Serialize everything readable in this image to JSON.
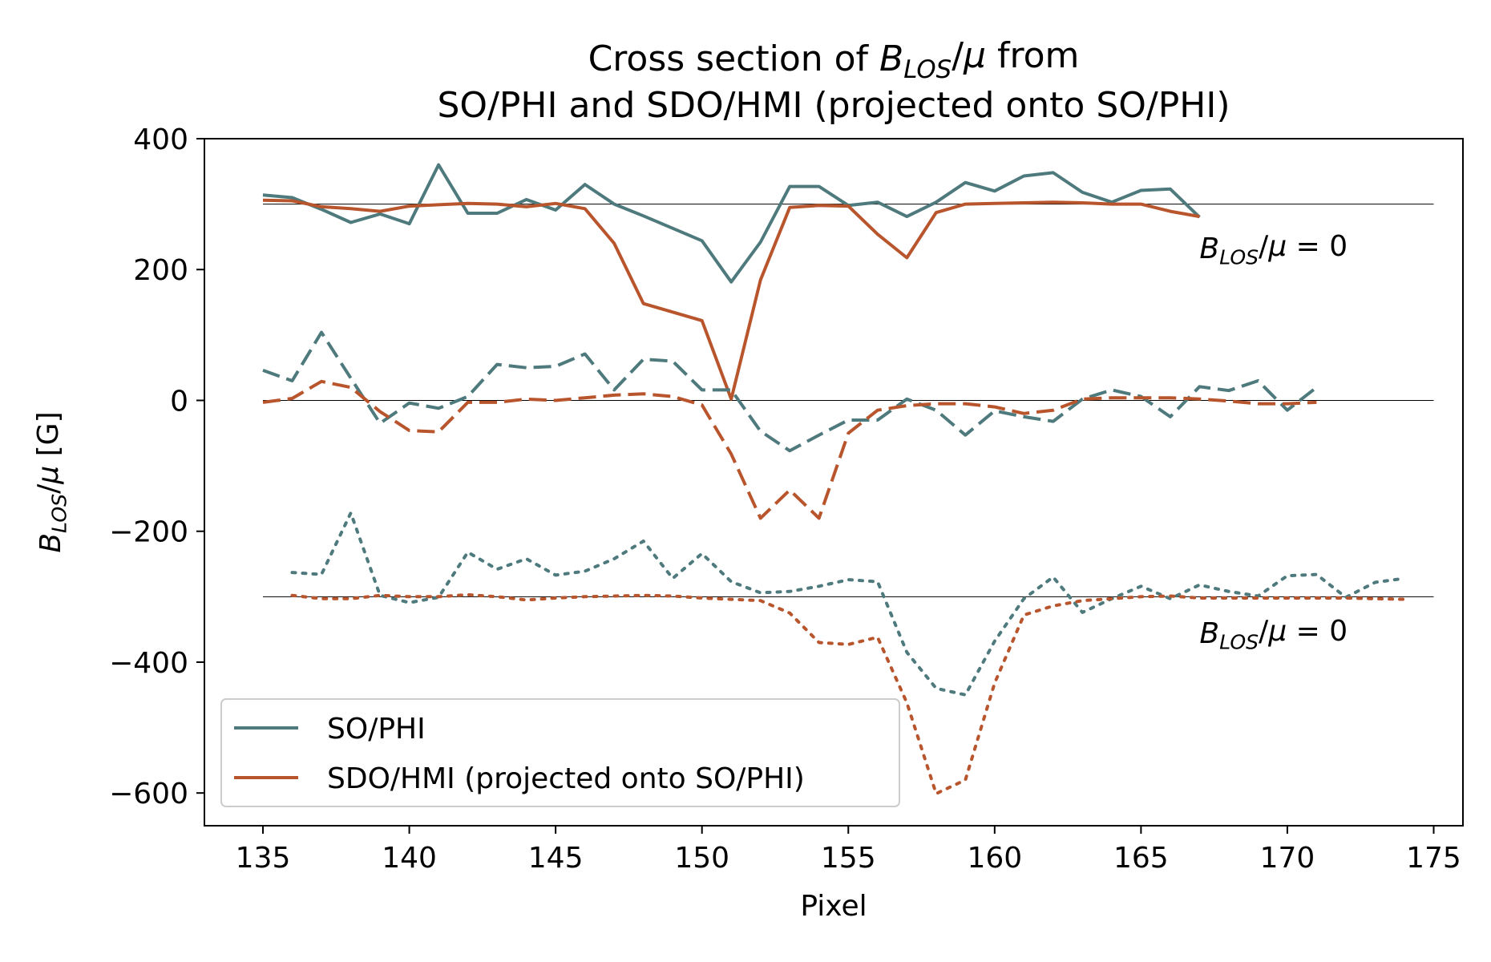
{
  "chart_data": {
    "type": "line",
    "title_line1": "Cross section of B_LOS/μ from",
    "title_line2": "SO/PHI and SDO/HMI (projected onto SO/PHI)",
    "xlabel": "Pixel",
    "ylabel": "B_LOS/μ [G]",
    "xlim": [
      133,
      176
    ],
    "ylim": [
      -650,
      400
    ],
    "x_ticks": [
      135,
      140,
      145,
      150,
      155,
      160,
      165,
      170,
      175
    ],
    "x_tick_labels": [
      "135",
      "140",
      "145",
      "150",
      "155",
      "160",
      "165",
      "170",
      "175"
    ],
    "y_ticks": [
      400,
      200,
      0,
      -200,
      -400,
      -600
    ],
    "y_tick_labels": [
      "400",
      "200",
      "0",
      "−200",
      "−400",
      "−600"
    ],
    "colors": {
      "phi": "#4e7a7d",
      "hmi": "#b8552c"
    },
    "reference_lines": [
      {
        "y": 300,
        "x_start": 135,
        "x_end": 175
      },
      {
        "y": 0,
        "x_start": 135,
        "x_end": 175
      },
      {
        "y": -300,
        "x_start": 135,
        "x_end": 175
      }
    ],
    "annotations": [
      {
        "text": "B_LOS/μ = 0",
        "x": 167,
        "y": 232
      },
      {
        "text": "B_LOS/μ = 0",
        "x": 167,
        "y": -356
      }
    ],
    "legend": [
      {
        "label": "SO/PHI",
        "series": "phi"
      },
      {
        "label": "SDO/HMI (projected onto SO/PHI)",
        "series": "hmi"
      }
    ],
    "series": [
      {
        "name": "SO/PHI",
        "instrument": "phi",
        "style": "solid",
        "x": [
          135,
          136,
          137,
          138,
          139,
          140,
          141,
          142,
          143,
          144,
          145,
          146,
          147,
          148,
          149,
          150,
          151,
          152,
          153,
          154,
          155,
          156,
          157,
          158,
          159,
          160,
          161,
          162,
          163,
          164,
          165,
          166,
          167
        ],
        "values": [
          314,
          310,
          292,
          272,
          285,
          270,
          360,
          286,
          286,
          307,
          291,
          330,
          300,
          282,
          263,
          244,
          181,
          242,
          327,
          327,
          298,
          303,
          281,
          303,
          333,
          320,
          343,
          348,
          318,
          303,
          321,
          323,
          280
        ]
      },
      {
        "name": "SDO/HMI (projected onto SO/PHI)",
        "instrument": "hmi",
        "style": "solid",
        "x": [
          135,
          136,
          137,
          138,
          139,
          140,
          141,
          142,
          143,
          144,
          145,
          146,
          147,
          148,
          149,
          150,
          151,
          152,
          153,
          154,
          155,
          156,
          157,
          158,
          159,
          160,
          161,
          162,
          163,
          164,
          165,
          166,
          167
        ],
        "values": [
          306,
          305,
          296,
          293,
          289,
          297,
          299,
          301,
          300,
          296,
          301,
          293,
          240,
          148,
          135,
          122,
          2,
          184,
          295,
          298,
          297,
          254,
          218,
          287,
          300,
          301,
          302,
          303,
          302,
          300,
          300,
          289,
          281
        ]
      },
      {
        "name": "SO/PHI (dashed)",
        "instrument": "phi",
        "style": "dashed",
        "x": [
          135,
          136,
          137,
          138,
          139,
          140,
          141,
          142,
          143,
          144,
          145,
          146,
          147,
          148,
          149,
          150,
          151,
          152,
          153,
          154,
          155,
          156,
          157,
          158,
          159,
          160,
          161,
          162,
          163,
          164,
          165,
          166,
          167,
          168,
          169,
          170,
          171
        ],
        "values": [
          46,
          30,
          104,
          34,
          -35,
          -4,
          -12,
          6,
          55,
          50,
          52,
          71,
          16,
          63,
          60,
          16,
          16,
          -47,
          -77,
          -53,
          -30,
          -30,
          2,
          -15,
          -53,
          -16,
          -25,
          -32,
          2,
          16,
          6,
          -25,
          21,
          15,
          30,
          -15,
          20
        ]
      },
      {
        "name": "SDO/HMI (dashed)",
        "instrument": "hmi",
        "style": "dashed",
        "x": [
          135,
          136,
          137,
          138,
          139,
          140,
          141,
          142,
          143,
          144,
          145,
          146,
          147,
          148,
          149,
          150,
          151,
          152,
          153,
          154,
          155,
          156,
          157,
          158,
          159,
          160,
          161,
          162,
          163,
          164,
          165,
          166,
          167,
          168,
          169,
          170,
          171
        ],
        "values": [
          -3,
          3,
          29,
          20,
          -17,
          -46,
          -48,
          -3,
          -3,
          2,
          0,
          4,
          8,
          10,
          6,
          -7,
          -82,
          -180,
          -137,
          -180,
          -50,
          -15,
          -8,
          -5,
          -5,
          -10,
          -20,
          -15,
          2,
          4,
          4,
          4,
          2,
          -1,
          -5,
          -5,
          -3
        ]
      },
      {
        "name": "SO/PHI (dotted)",
        "instrument": "phi",
        "style": "dotted",
        "x": [
          136,
          137,
          138,
          139,
          140,
          141,
          142,
          143,
          144,
          145,
          146,
          147,
          148,
          149,
          150,
          151,
          152,
          153,
          154,
          155,
          156,
          157,
          158,
          159,
          160,
          161,
          162,
          163,
          164,
          165,
          166,
          167,
          168,
          169,
          170,
          171,
          172,
          173,
          174
        ],
        "values": [
          -263,
          -266,
          -172,
          -298,
          -309,
          -301,
          -232,
          -258,
          -242,
          -267,
          -261,
          -242,
          -215,
          -272,
          -234,
          -277,
          -294,
          -292,
          -284,
          -274,
          -277,
          -385,
          -440,
          -450,
          -368,
          -303,
          -270,
          -324,
          -303,
          -284,
          -303,
          -282,
          -292,
          -299,
          -268,
          -266,
          -301,
          -278,
          -272
        ]
      },
      {
        "name": "SDO/HMI (dotted)",
        "instrument": "hmi",
        "style": "dotted",
        "x": [
          136,
          137,
          138,
          139,
          140,
          141,
          142,
          143,
          144,
          145,
          146,
          147,
          148,
          149,
          150,
          151,
          152,
          153,
          154,
          155,
          156,
          157,
          158,
          159,
          160,
          161,
          162,
          163,
          164,
          165,
          166,
          167,
          168,
          169,
          170,
          171,
          172,
          173,
          174
        ],
        "values": [
          -298,
          -303,
          -303,
          -298,
          -300,
          -300,
          -297,
          -300,
          -305,
          -302,
          -300,
          -299,
          -298,
          -299,
          -302,
          -304,
          -306,
          -325,
          -370,
          -373,
          -362,
          -462,
          -601,
          -580,
          -432,
          -328,
          -314,
          -306,
          -303,
          -300,
          -299,
          -302,
          -302,
          -302,
          -302,
          -302,
          -302,
          -303,
          -304
        ]
      }
    ]
  }
}
